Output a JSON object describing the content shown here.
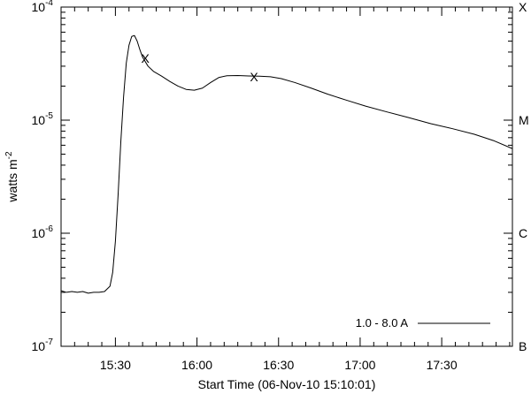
{
  "chart_data": {
    "type": "line",
    "title": "",
    "xlabel": "Start Time (06-Nov-10 15:10:01)",
    "ylabel_base": "watts m",
    "ylabel_exp": "-2",
    "y_scale": "log",
    "ylim": [
      1e-07,
      0.0001
    ],
    "xlim": [
      "15:10:01",
      "17:56:00"
    ],
    "grid": false,
    "legend_position": "bottom-right",
    "y_ticks": [
      {
        "value": 1e-07,
        "base": "10",
        "exp": "-7"
      },
      {
        "value": 1e-06,
        "base": "10",
        "exp": "-6"
      },
      {
        "value": 1e-05,
        "base": "10",
        "exp": "-5"
      },
      {
        "value": 0.0001,
        "base": "10",
        "exp": "-4"
      }
    ],
    "x_ticks": [
      {
        "time": "15:30",
        "label": "15:30"
      },
      {
        "time": "16:00",
        "label": "16:00"
      },
      {
        "time": "16:30",
        "label": "16:30"
      },
      {
        "time": "17:00",
        "label": "17:00"
      },
      {
        "time": "17:30",
        "label": "17:30"
      }
    ],
    "class_labels": [
      {
        "value": 0.0001,
        "label": "X"
      },
      {
        "value": 1e-05,
        "label": "M"
      },
      {
        "value": 1e-06,
        "label": "C"
      },
      {
        "value": 1e-07,
        "label": "B"
      }
    ],
    "series": [
      {
        "name": "1.0 - 8.0 A",
        "color": "#000000",
        "points": [
          [
            "15:10:01",
            3.1e-07
          ],
          [
            "15:12",
            3e-07
          ],
          [
            "15:14",
            3.05e-07
          ],
          [
            "15:16",
            3e-07
          ],
          [
            "15:18",
            3.05e-07
          ],
          [
            "15:20",
            2.95e-07
          ],
          [
            "15:22",
            3e-07
          ],
          [
            "15:24",
            3e-07
          ],
          [
            "15:26",
            3.05e-07
          ],
          [
            "15:28",
            3.4e-07
          ],
          [
            "15:29",
            4.5e-07
          ],
          [
            "15:30",
            8.5e-07
          ],
          [
            "15:31",
            2.2e-06
          ],
          [
            "15:32",
            6.5e-06
          ],
          [
            "15:33",
            1.6e-05
          ],
          [
            "15:34",
            3.2e-05
          ],
          [
            "15:35",
            4.6e-05
          ],
          [
            "15:36",
            5.5e-05
          ],
          [
            "15:37",
            5.6e-05
          ],
          [
            "15:38",
            5e-05
          ],
          [
            "15:39",
            4.2e-05
          ],
          [
            "15:40",
            3.6e-05
          ],
          [
            "15:42",
            3e-05
          ],
          [
            "15:44",
            2.7e-05
          ],
          [
            "15:47",
            2.45e-05
          ],
          [
            "15:50",
            2.2e-05
          ],
          [
            "15:53",
            2e-05
          ],
          [
            "15:56",
            1.87e-05
          ],
          [
            "15:59",
            1.84e-05
          ],
          [
            "16:02",
            1.92e-05
          ],
          [
            "16:05",
            2.15e-05
          ],
          [
            "16:08",
            2.38e-05
          ],
          [
            "16:11",
            2.47e-05
          ],
          [
            "16:15",
            2.48e-05
          ],
          [
            "16:19",
            2.46e-05
          ],
          [
            "16:23",
            2.45e-05
          ],
          [
            "16:27",
            2.42e-05
          ],
          [
            "16:31",
            2.33e-05
          ],
          [
            "16:36",
            2.15e-05
          ],
          [
            "16:42",
            1.92e-05
          ],
          [
            "16:48",
            1.7e-05
          ],
          [
            "16:55",
            1.5e-05
          ],
          [
            "17:02",
            1.33e-05
          ],
          [
            "17:10",
            1.18e-05
          ],
          [
            "17:18",
            1.05e-05
          ],
          [
            "17:26",
            9.3e-06
          ],
          [
            "17:34",
            8.4e-06
          ],
          [
            "17:42",
            7.5e-06
          ],
          [
            "17:49",
            6.6e-06
          ],
          [
            "17:56",
            5.6e-06
          ]
        ]
      }
    ],
    "markers": [
      {
        "time": "15:41",
        "value": 3.6e-05,
        "symbol": "X"
      },
      {
        "time": "16:21",
        "value": 2.45e-05,
        "symbol": "X"
      }
    ]
  }
}
